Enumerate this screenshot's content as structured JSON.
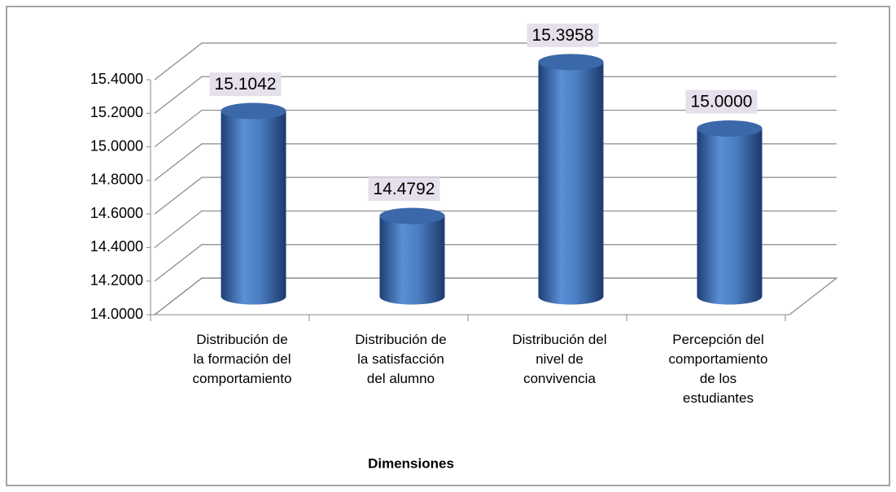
{
  "chart_data": {
    "type": "bar3d",
    "categories": [
      "Distribución de la formación del comportamiento",
      "Distribución  de la satisfacción del alumno",
      "Distribución del nivel de convivencia",
      "Percepción del comportamiento de los estudiantes"
    ],
    "values": [
      15.1042,
      14.4792,
      15.3958,
      15.0
    ],
    "value_labels": [
      "15.1042",
      "14.4792",
      "15.3958",
      "15.0000"
    ],
    "color": "#4f81bd",
    "xlabel": "Dimensiones",
    "ylim": [
      14,
      15.4
    ],
    "yticks": [
      {
        "value": 14,
        "label": "14.0000"
      },
      {
        "value": 14.2,
        "label": "14.2000"
      },
      {
        "value": 14.4,
        "label": "14.4000"
      },
      {
        "value": 14.6,
        "label": "14.6000"
      },
      {
        "value": 14.8,
        "label": "14.8000"
      },
      {
        "value": 15,
        "label": "15.0000"
      },
      {
        "value": 15.2,
        "label": "15.2000"
      },
      {
        "value": 15.4,
        "label": "15.4000"
      }
    ],
    "grid": true
  }
}
